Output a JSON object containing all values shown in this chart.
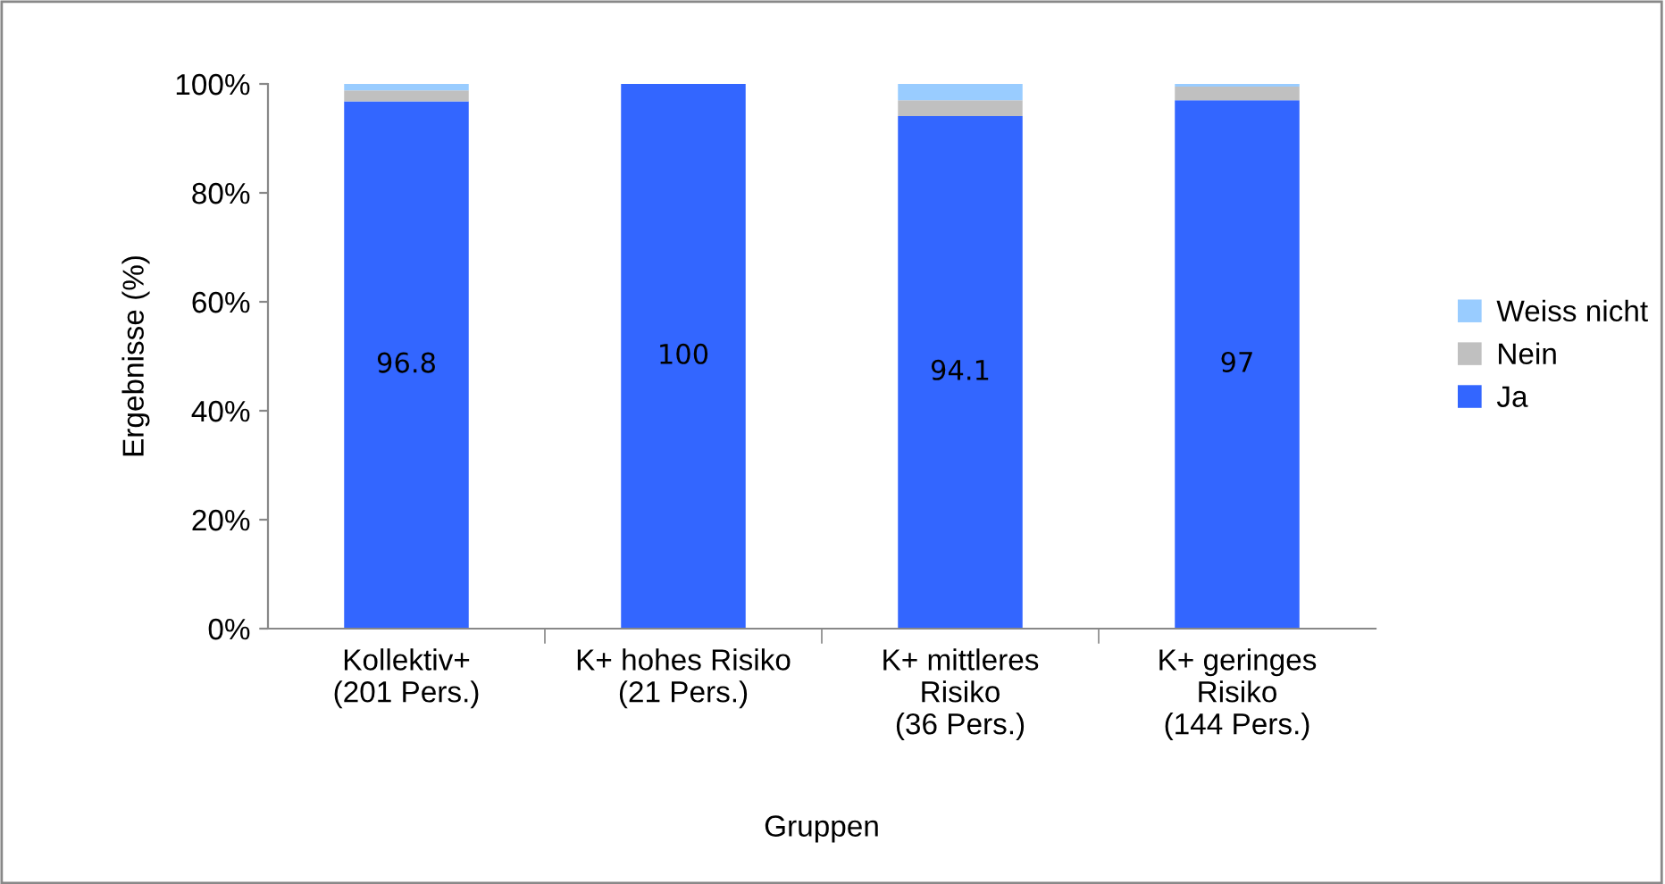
{
  "chart_data": {
    "type": "bar",
    "stacked": true,
    "xlabel": "Gruppen",
    "ylabel": "Ergebnisse (%)",
    "categories": [
      "Kollektiv+\n(201 Pers.)",
      "K+ hohes Risiko\n(21 Pers.)",
      "K+ mittleres\nRisiko\n(36 Pers.)",
      "K+ geringes\nRisiko\n(144 Pers.)"
    ],
    "series": [
      {
        "name": "Ja",
        "color": "#3366ff",
        "values": [
          96.8,
          100,
          94.1,
          97
        ],
        "value_labels": [
          "96.8",
          "100",
          "94.1",
          "97"
        ]
      },
      {
        "name": "Nein",
        "color": "#c0c0c0",
        "values": [
          2.0,
          0,
          2.9,
          2.5
        ]
      },
      {
        "name": "Weiss nicht",
        "color": "#99ccff",
        "values": [
          1.2,
          0,
          3.0,
          0.5
        ]
      }
    ],
    "ylim": [
      0,
      100
    ],
    "yticks": [
      {
        "value": 0,
        "label": "0%"
      },
      {
        "value": 20,
        "label": "20%"
      },
      {
        "value": 40,
        "label": "40%"
      },
      {
        "value": 60,
        "label": "60%"
      },
      {
        "value": 80,
        "label": "80%"
      },
      {
        "value": 100,
        "label": "100%"
      }
    ],
    "grid": false,
    "legend": "right"
  }
}
